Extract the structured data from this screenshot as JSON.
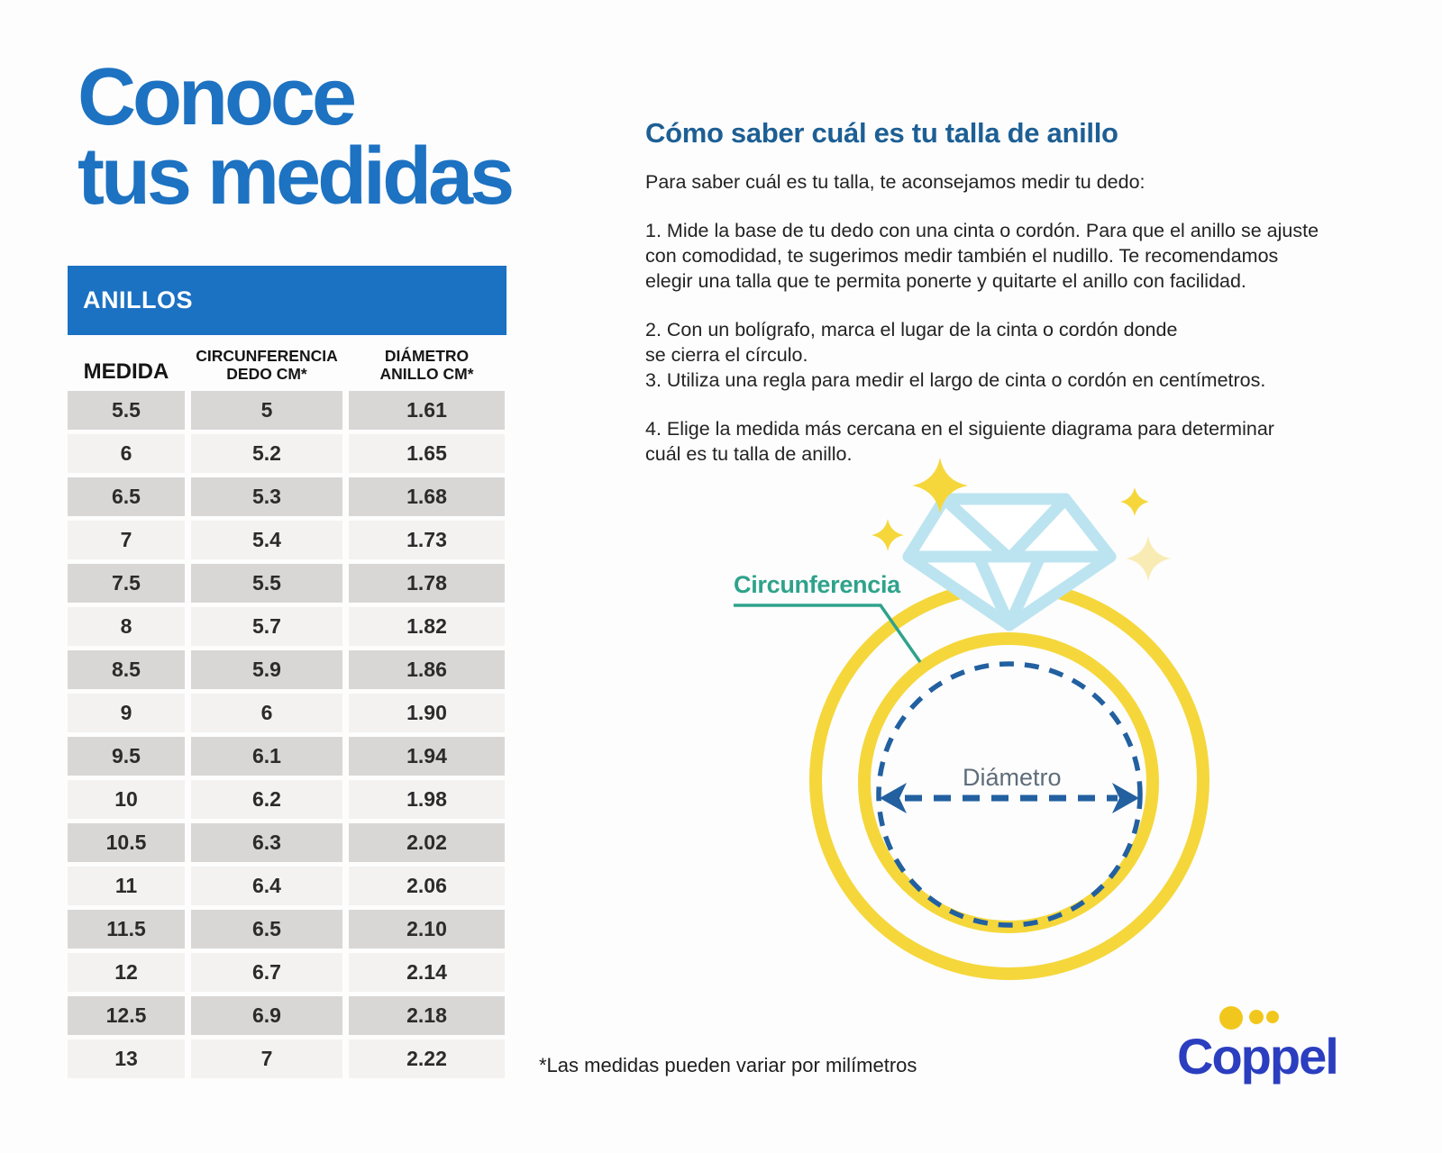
{
  "title": {
    "line1": "Conoce",
    "line2": "tus medidas"
  },
  "table": {
    "banner": "ANILLOS",
    "columns": [
      {
        "lines": [
          "MEDIDA"
        ]
      },
      {
        "lines": [
          "CIRCUNFERENCIA",
          "DEDO CM*"
        ]
      },
      {
        "lines": [
          "DIÁMETRO",
          "ANILLO CM*"
        ]
      }
    ],
    "rows": [
      [
        "5.5",
        "5",
        "1.61"
      ],
      [
        "6",
        "5.2",
        "1.65"
      ],
      [
        "6.5",
        "5.3",
        "1.68"
      ],
      [
        "7",
        "5.4",
        "1.73"
      ],
      [
        "7.5",
        "5.5",
        "1.78"
      ],
      [
        "8",
        "5.7",
        "1.82"
      ],
      [
        "8.5",
        "5.9",
        "1.86"
      ],
      [
        "9",
        "6",
        "1.90"
      ],
      [
        "9.5",
        "6.1",
        "1.94"
      ],
      [
        "10",
        "6.2",
        "1.98"
      ],
      [
        "10.5",
        "6.3",
        "2.02"
      ],
      [
        "11",
        "6.4",
        "2.06"
      ],
      [
        "11.5",
        "6.5",
        "2.10"
      ],
      [
        "12",
        "6.7",
        "2.14"
      ],
      [
        "12.5",
        "6.9",
        "2.18"
      ],
      [
        "13",
        "7",
        "2.22"
      ]
    ]
  },
  "guide": {
    "heading": "Cómo saber cuál es tu talla de anillo",
    "intro": "Para saber cuál es tu talla, te aconsejamos medir tu dedo:",
    "steps": [
      "1. Mide la base de tu dedo con una cinta o cordón. Para que el anillo se ajuste\ncon comodidad, te sugerimos medir también el nudillo. Te recomendamos\nelegir una talla que te permita ponerte y quitarte el anillo con facilidad.",
      "2. Con un bolígrafo, marca el lugar de la cinta o cordón donde\nse cierra el círculo.\n3. Utiliza una regla para medir el largo de cinta o cordón en centímetros.",
      "4. Elige la medida más cercana en el siguiente diagrama para determinar\ncuál es tu talla de anillo."
    ]
  },
  "diagram": {
    "circumference_label": "Circunferencia",
    "diameter_label": "Diámetro"
  },
  "footnote": "*Las medidas pueden variar por milímetros",
  "brand": {
    "name": "Coppel"
  },
  "colors": {
    "title_blue": "#1d72c2",
    "table_header_bg": "#1b71c2",
    "row_dark": "#d9d7d6",
    "row_light": "#f4f2f1",
    "heading_blue": "#1d5f94",
    "ring_yellow": "#f5d73b",
    "pale_sparkle": "#f8ecb4",
    "diamond_blue": "#bce4f0",
    "dashed_blue": "#2260a0",
    "teal": "#2fa28b",
    "diameter_gray": "#5f6d7a",
    "coppel_blue": "#2b3ec0",
    "coppel_dot_yellow": "#f2c71d"
  }
}
